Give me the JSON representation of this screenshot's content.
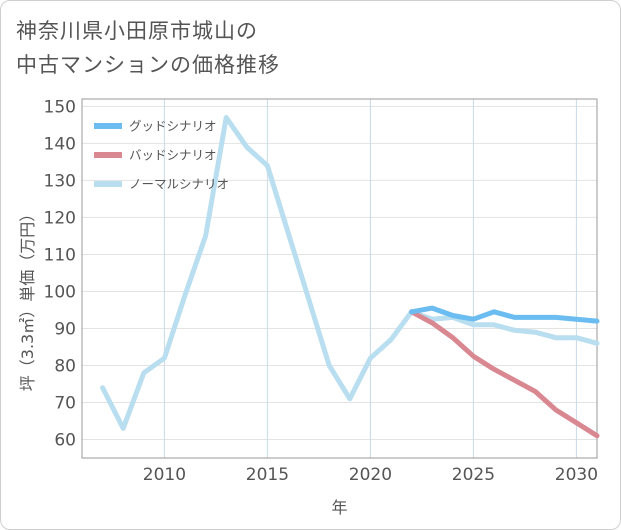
{
  "title_line1": "神奈川県小田原市城山の",
  "title_line2": "中古マンションの価格推移",
  "chart_data": {
    "type": "line",
    "title": "神奈川県小田原市城山の中古マンションの価格推移",
    "xlabel": "年",
    "ylabel": "坪（3.3㎡）単価（万円）",
    "xlim": [
      2006,
      2031
    ],
    "ylim": [
      55,
      152
    ],
    "xticks": [
      2010,
      2015,
      2020,
      2025,
      2030
    ],
    "yticks": [
      60,
      70,
      80,
      90,
      100,
      110,
      120,
      130,
      140,
      150
    ],
    "legend_position": "top-left",
    "series": [
      {
        "name": "グッドシナリオ",
        "color": "#6bbcf0",
        "x": [
          2022,
          2023,
          2024,
          2025,
          2026,
          2027,
          2028,
          2029,
          2030,
          2031
        ],
        "values": [
          94.5,
          95.5,
          93.5,
          92.5,
          94.5,
          93,
          93,
          93,
          92.5,
          92
        ]
      },
      {
        "name": "バッドシナリオ",
        "color": "#d98790",
        "x": [
          2022,
          2023,
          2024,
          2025,
          2026,
          2027,
          2028,
          2029,
          2030,
          2031
        ],
        "values": [
          94.5,
          91.5,
          87.5,
          82.5,
          79,
          76,
          73,
          68,
          64.5,
          61
        ]
      },
      {
        "name": "ノーマルシナリオ",
        "color": "#b9def0",
        "x": [
          2007,
          2008,
          2009,
          2010,
          2011,
          2012,
          2013,
          2014,
          2015,
          2016,
          2017,
          2018,
          2019,
          2020,
          2021,
          2022,
          2023,
          2024,
          2025,
          2026,
          2027,
          2028,
          2029,
          2030,
          2031
        ],
        "values": [
          74,
          63,
          78,
          82,
          99,
          115,
          147,
          139,
          134,
          116,
          98,
          80,
          71,
          82,
          87,
          94.5,
          92.5,
          93,
          91,
          91,
          89.5,
          89,
          87.5,
          87.5,
          86
        ]
      }
    ]
  }
}
